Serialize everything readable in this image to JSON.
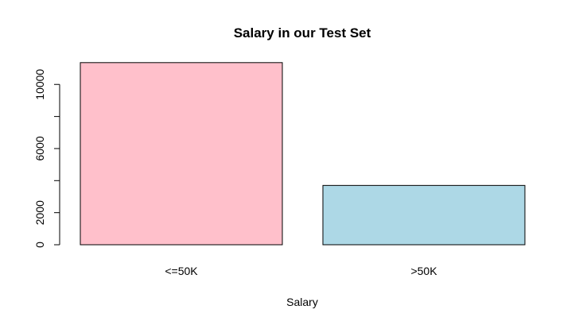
{
  "chart_data": {
    "type": "bar",
    "title": "Salary in our Test Set",
    "xlabel": "Salary",
    "ylabel": "",
    "categories": [
      "<=50K",
      ">50K"
    ],
    "values": [
      11360,
      3700
    ],
    "colors": [
      "#ffc0cb",
      "#add8e6"
    ],
    "ylim": [
      0,
      11400
    ],
    "yticks": [
      0,
      2000,
      4000,
      6000,
      8000,
      10000
    ],
    "ytick_labels": [
      "0",
      "2000",
      "",
      "6000",
      "",
      "10000"
    ],
    "grid": false,
    "legend": "none"
  }
}
